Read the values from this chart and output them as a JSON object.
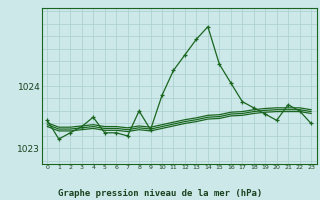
{
  "title": "Graphe pression niveau de la mer (hPa)",
  "bg_color": "#cce8e8",
  "plot_bg_color": "#cce8e8",
  "grid_color": "#aacece",
  "line_color": "#1a6620",
  "text_color": "#1a4420",
  "hours": [
    0,
    1,
    2,
    3,
    4,
    5,
    6,
    7,
    8,
    9,
    10,
    11,
    12,
    13,
    14,
    15,
    16,
    17,
    18,
    19,
    20,
    21,
    22,
    23
  ],
  "main_line": [
    1023.45,
    1023.15,
    1023.25,
    1023.35,
    1023.5,
    1023.25,
    1023.25,
    1023.2,
    1023.6,
    1023.3,
    1023.85,
    1024.25,
    1024.5,
    1024.75,
    1024.95,
    1024.35,
    1024.05,
    1023.75,
    1023.65,
    1023.55,
    1023.45,
    1023.7,
    1023.6,
    1023.4
  ],
  "flat_line1": [
    1023.35,
    1023.28,
    1023.28,
    1023.3,
    1023.32,
    1023.29,
    1023.29,
    1023.27,
    1023.3,
    1023.28,
    1023.32,
    1023.36,
    1023.4,
    1023.43,
    1023.47,
    1023.48,
    1023.52,
    1023.53,
    1023.56,
    1023.58,
    1023.59,
    1023.59,
    1023.59,
    1023.56
  ],
  "flat_line2": [
    1023.38,
    1023.31,
    1023.31,
    1023.33,
    1023.35,
    1023.32,
    1023.32,
    1023.3,
    1023.33,
    1023.31,
    1023.35,
    1023.39,
    1023.43,
    1023.46,
    1023.5,
    1023.51,
    1023.55,
    1023.56,
    1023.59,
    1023.61,
    1023.62,
    1023.62,
    1023.62,
    1023.59
  ],
  "flat_line3": [
    1023.41,
    1023.34,
    1023.34,
    1023.36,
    1023.38,
    1023.35,
    1023.35,
    1023.33,
    1023.36,
    1023.34,
    1023.38,
    1023.42,
    1023.46,
    1023.49,
    1023.53,
    1023.54,
    1023.58,
    1023.59,
    1023.62,
    1023.64,
    1023.65,
    1023.65,
    1023.65,
    1023.62
  ],
  "ylim": [
    1022.75,
    1025.25
  ],
  "yticks": [
    1023,
    1024
  ],
  "ytick_labels": [
    "1023",
    "1024"
  ]
}
